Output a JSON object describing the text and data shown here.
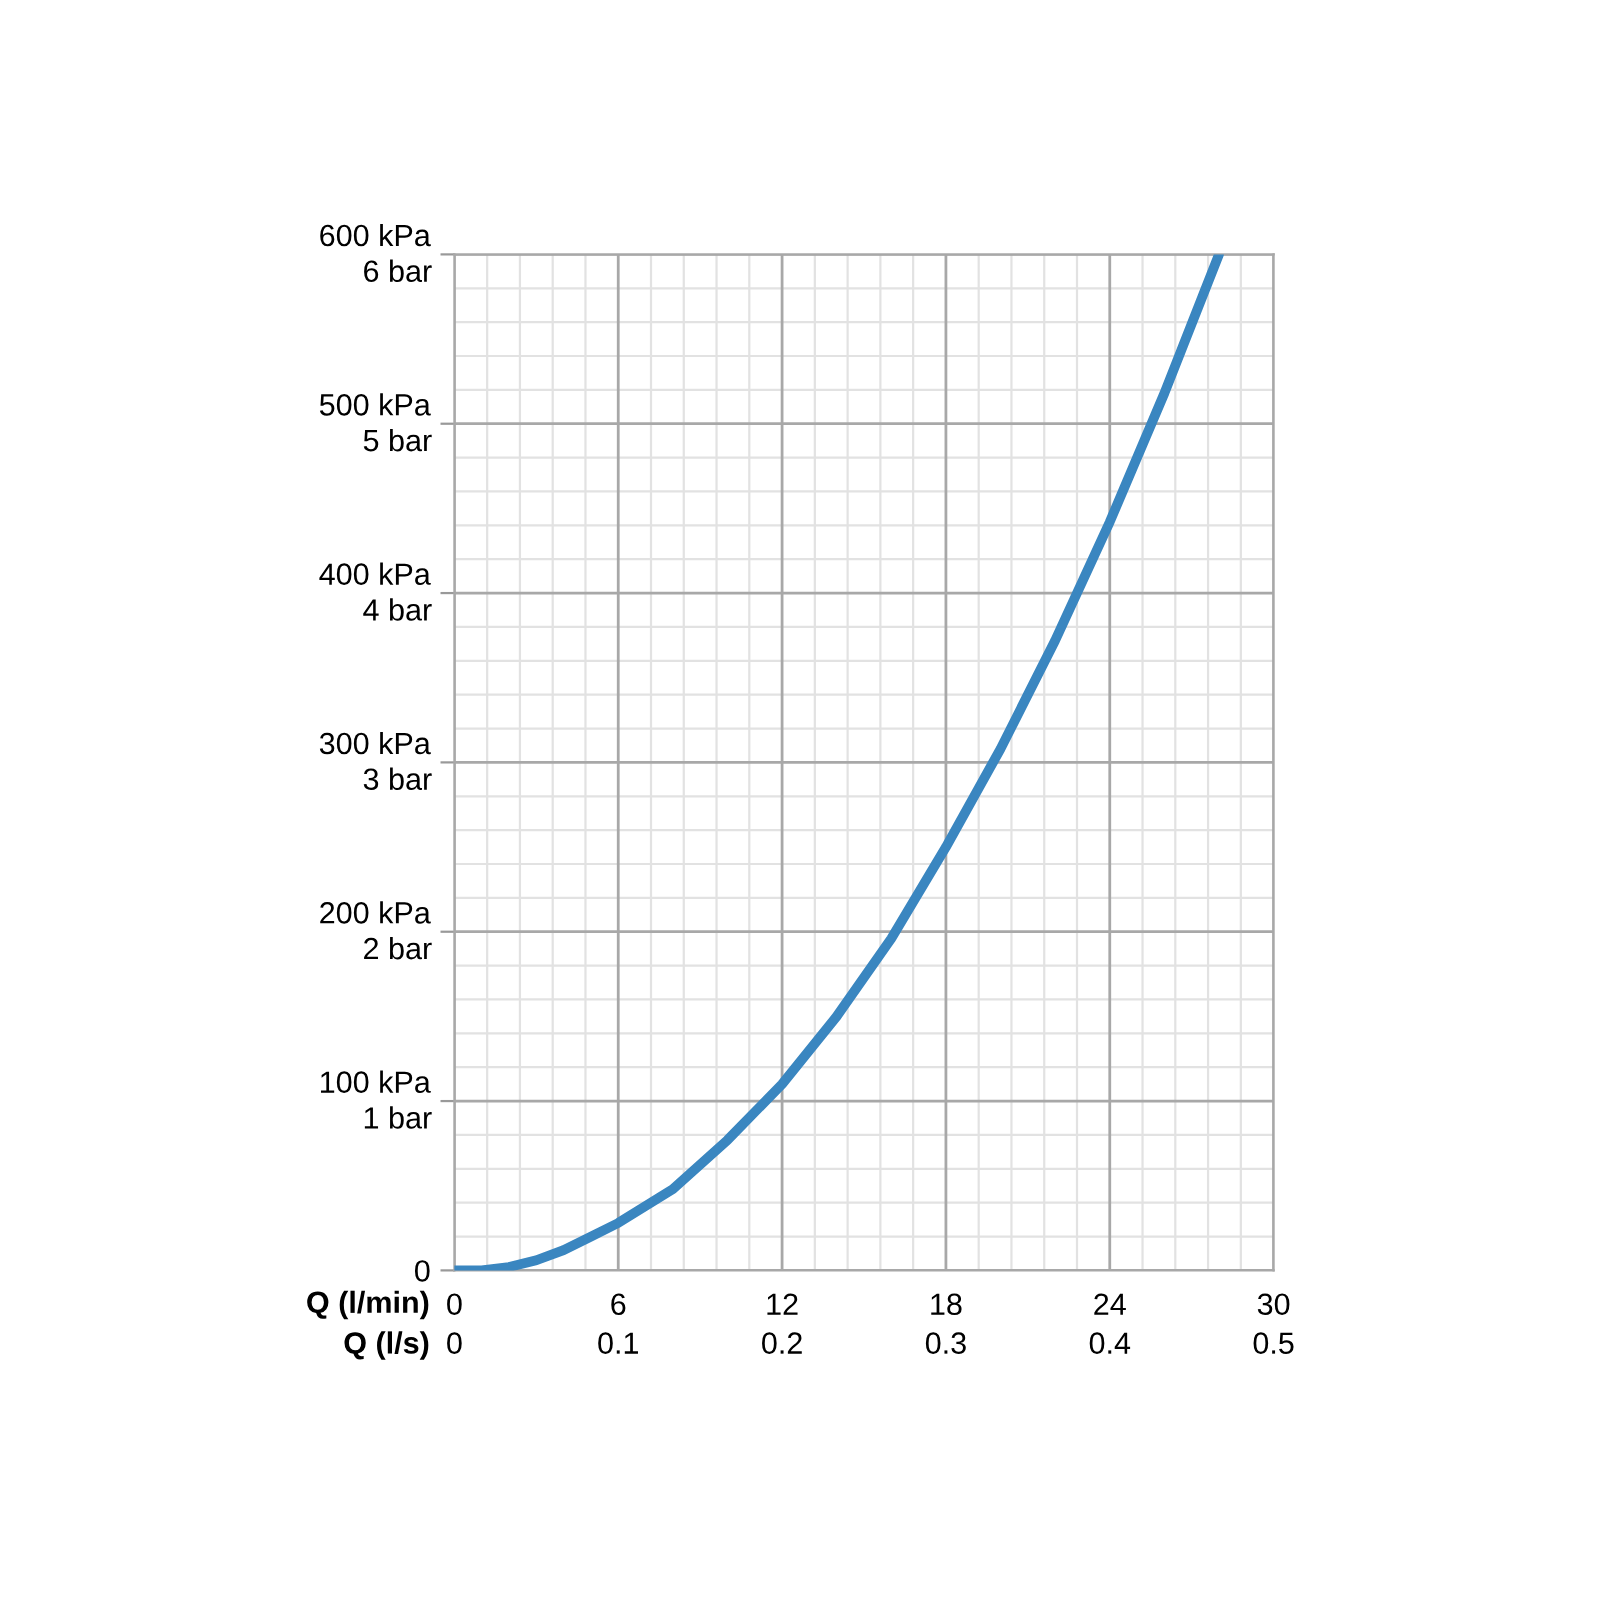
{
  "chart_data": {
    "type": "line",
    "xlabel": "Q (l/min)",
    "x2label": "Q (l/s)",
    "xlim": [
      0,
      30
    ],
    "xticks": [
      0,
      6,
      12,
      18,
      24,
      30
    ],
    "x2lim": [
      0,
      0.5
    ],
    "x2ticks": [
      0,
      0.1,
      0.2,
      0.3,
      0.4,
      0.5
    ],
    "ylim": [
      0,
      600
    ],
    "yticks": [
      0,
      {
        "value": 100,
        "label": "100 kPa"
      },
      {
        "value": 200,
        "label": "200 kPa"
      },
      {
        "value": 300,
        "label": "300 kPa"
      },
      {
        "value": 400,
        "label": "400 kPa"
      },
      {
        "value": 500,
        "label": "500 kPa"
      },
      {
        "value": 600,
        "label": "600 kPa"
      }
    ],
    "y2lim": [
      0,
      6
    ],
    "y2ticks": [
      {
        "value": 1,
        "label": "1 bar"
      },
      {
        "value": 2,
        "label": "2 bar"
      },
      {
        "value": 3,
        "label": "3 bar"
      },
      {
        "value": 4,
        "label": "4 bar"
      },
      {
        "value": 5,
        "label": "5 bar"
      },
      {
        "value": 6,
        "label": "6 bar"
      }
    ],
    "grid": true,
    "marker": "none",
    "line_style": "solid",
    "series": [
      {
        "color": "#3a86c0",
        "x": [
          0,
          1,
          2,
          3,
          4,
          5,
          6,
          8,
          10,
          12,
          14,
          16,
          18,
          20,
          22,
          24,
          26,
          28
        ],
        "values": [
          0,
          0,
          2,
          6,
          12,
          20,
          28,
          48,
          77,
          110,
          150,
          196,
          250,
          308,
          372,
          442,
          518,
          600
        ]
      }
    ]
  }
}
